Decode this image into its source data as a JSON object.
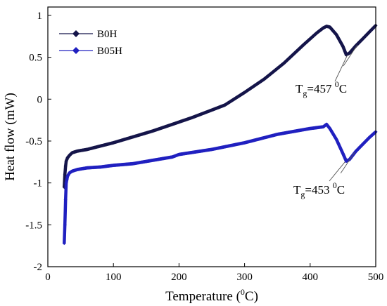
{
  "chart_data": {
    "type": "line",
    "title": "",
    "xlabel": "Temperature",
    "xlabel_unit_base": "0",
    "xlabel_unit_suffix": "C",
    "ylabel": "Heat flow (mW)",
    "xlim": [
      0,
      500
    ],
    "ylim": [
      -2,
      1.1
    ],
    "x_ticks": [
      0,
      100,
      200,
      300,
      400,
      500
    ],
    "y_ticks": [
      1,
      0.5,
      0,
      -0.5,
      -1,
      -1.5,
      -2
    ],
    "x_tick_labels": [
      "0",
      "100",
      "200",
      "300",
      "400",
      "500"
    ],
    "y_tick_labels": [
      "1",
      "0.5",
      "0",
      "-0.5",
      "-1",
      "-1.5",
      "-2"
    ],
    "grid": false,
    "legend_position": "top-left",
    "series": [
      {
        "name": "B0H",
        "color": "#15154a",
        "marker": "diamond",
        "x": [
          25,
          26,
          27,
          28,
          30,
          33,
          37,
          45,
          60,
          80,
          100,
          130,
          160,
          190,
          220,
          250,
          270,
          300,
          330,
          360,
          390,
          410,
          420,
          425,
          430,
          440,
          450,
          455,
          460,
          470,
          480,
          490,
          500
        ],
        "y": [
          -1.05,
          -0.9,
          -0.8,
          -0.74,
          -0.7,
          -0.67,
          -0.64,
          -0.62,
          -0.6,
          -0.56,
          -0.52,
          -0.45,
          -0.38,
          -0.3,
          -0.22,
          -0.13,
          -0.07,
          0.08,
          0.24,
          0.43,
          0.65,
          0.79,
          0.85,
          0.87,
          0.86,
          0.77,
          0.63,
          0.53,
          0.55,
          0.64,
          0.72,
          0.8,
          0.88
        ]
      },
      {
        "name": "B05H",
        "color": "#2020c0",
        "marker": "diamond",
        "x": [
          25,
          26,
          27,
          28,
          30,
          33,
          37,
          45,
          60,
          80,
          100,
          130,
          160,
          190,
          200,
          250,
          300,
          350,
          400,
          420,
          425,
          430,
          440,
          450,
          455,
          460,
          470,
          480,
          490,
          500
        ],
        "y": [
          -1.72,
          -1.5,
          -1.2,
          -1.0,
          -0.92,
          -0.88,
          -0.86,
          -0.84,
          -0.82,
          -0.81,
          -0.79,
          -0.77,
          -0.73,
          -0.69,
          -0.66,
          -0.6,
          -0.52,
          -0.42,
          -0.35,
          -0.33,
          -0.3,
          -0.35,
          -0.48,
          -0.65,
          -0.74,
          -0.72,
          -0.62,
          -0.54,
          -0.46,
          -0.39
        ]
      }
    ],
    "annotations": [
      {
        "base": "T",
        "sub": "g",
        "mid": "=457 ",
        "sup": "0",
        "end": "C",
        "x": 457,
        "y": 0.53
      },
      {
        "base": "T",
        "sub": "g",
        "mid": "=453 ",
        "sup": "0",
        "end": "C",
        "x": 453,
        "y": -0.75
      }
    ]
  }
}
